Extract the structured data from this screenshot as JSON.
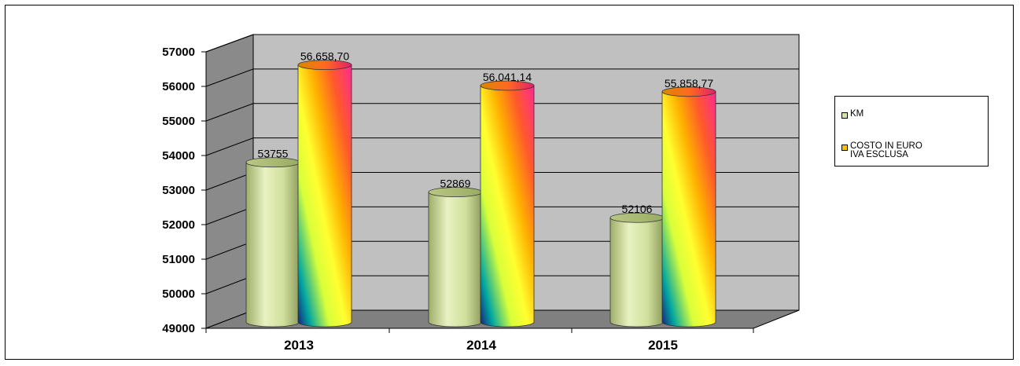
{
  "chart_data": {
    "type": "bar",
    "style": "3d-cylinder",
    "categories": [
      "2013",
      "2014",
      "2015"
    ],
    "series": [
      {
        "name": "KM",
        "values": [
          53755,
          52869,
          52106
        ],
        "labels": [
          "53755",
          "52869",
          "52106"
        ],
        "color": "#d6e5a4"
      },
      {
        "name": "COSTO IN EURO IVA ESCLUSA",
        "values": [
          56658.7,
          56041.14,
          55858.77
        ],
        "labels": [
          "56.658,70",
          "56.041,14",
          "55.858,77"
        ],
        "color": "#f5c400"
      }
    ],
    "yticks": [
      "57000",
      "56000",
      "55000",
      "54000",
      "53000",
      "52000",
      "51000",
      "50000",
      "49000"
    ],
    "ylim": [
      49000,
      57000
    ],
    "grid": true,
    "legend_position": "right",
    "wall_color": "#c0c0c0",
    "floor_color": "#808080"
  },
  "legend": {
    "items": [
      "KM",
      "COSTO IN EURO\nIVA ESCLUSA"
    ]
  }
}
